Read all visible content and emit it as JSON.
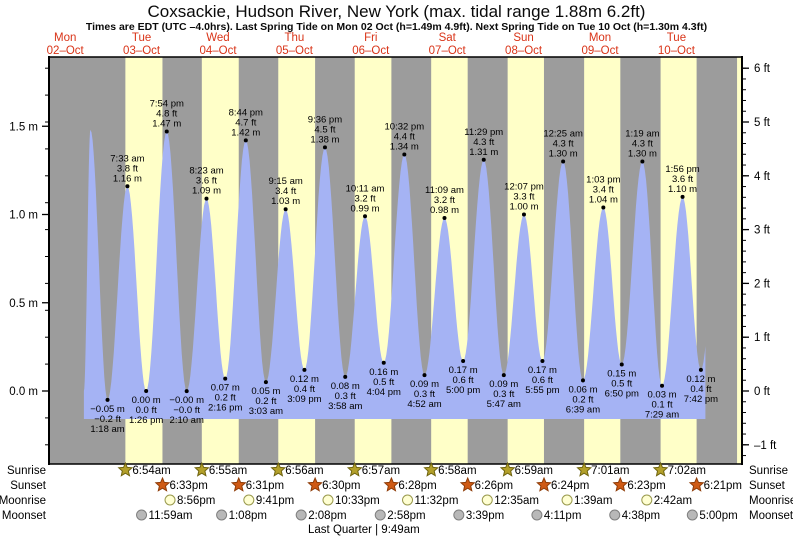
{
  "header": {
    "title": "Coxsackie, Hudson River, New York (max. tidal range 1.88m 6.2ft)",
    "subtitle": "Times are EDT (UTC –4.0hrs). Last Spring Tide on Mon 02 Oct (h=1.49m 4.9ft). Next Spring Tide on Tue 10 Oct (h=1.30m 4.3ft)"
  },
  "days": [
    {
      "dow": "Mon",
      "date": "02–Oct"
    },
    {
      "dow": "Tue",
      "date": "03–Oct"
    },
    {
      "dow": "Wed",
      "date": "04–Oct"
    },
    {
      "dow": "Thu",
      "date": "05–Oct"
    },
    {
      "dow": "Fri",
      "date": "06–Oct"
    },
    {
      "dow": "Sat",
      "date": "07–Oct"
    },
    {
      "dow": "Sun",
      "date": "08–Oct"
    },
    {
      "dow": "Mon",
      "date": "09–Oct"
    },
    {
      "dow": "Tue",
      "date": "10–Oct"
    }
  ],
  "axes": {
    "left_labels": [
      {
        "text": "1.5 m",
        "m": 1.5
      },
      {
        "text": "1.0 m",
        "m": 1.0
      },
      {
        "text": "0.5 m",
        "m": 0.5
      },
      {
        "text": "0.0 m",
        "m": 0.0
      }
    ],
    "right_labels": [
      {
        "text": "6 ft",
        "ft": 6
      },
      {
        "text": "5 ft",
        "ft": 5
      },
      {
        "text": "4 ft",
        "ft": 4
      },
      {
        "text": "3 ft",
        "ft": 3
      },
      {
        "text": "2 ft",
        "ft": 2
      },
      {
        "text": "1 ft",
        "ft": 1
      },
      {
        "text": "0 ft",
        "ft": 0
      },
      {
        "text": "–1 ft",
        "ft": -1
      }
    ]
  },
  "chart_data": {
    "type": "area",
    "title": "Coxsackie, Hudson River, New York tide curve",
    "ylabel_left": "meters",
    "ylabel_right": "feet",
    "ylim_m": [
      -0.43,
      1.88
    ],
    "x_range": "Mon 02 Oct evening – Tue 10 Oct night",
    "legend_position": "none",
    "grid": false,
    "curve": {
      "start": {
        "t": 0.745,
        "h": 0.0
      },
      "unlabeled_spring_peak": {
        "t": 0.83,
        "h": 1.48
      },
      "end_t": 8.88,
      "next_high": {
        "t": 9.09,
        "h": 1.3
      }
    },
    "extremes": [
      {
        "day": 1,
        "type": "low",
        "time_label": "1:18 am",
        "ft_label": "−0.2 ft",
        "m_label": "−0.05 m",
        "h_m": -0.05
      },
      {
        "day": 1,
        "type": "high",
        "time_label": "7:33 am",
        "ft_label": "3.8 ft",
        "m_label": "1.16 m",
        "h_m": 1.16
      },
      {
        "day": 1,
        "type": "low",
        "time_label": "1:26 pm",
        "ft_label": "0.0 ft",
        "m_label": "0.00 m",
        "h_m": 0.0
      },
      {
        "day": 1,
        "type": "high",
        "time_label": "7:54 pm",
        "ft_label": "4.8 ft",
        "m_label": "1.47 m",
        "h_m": 1.47
      },
      {
        "day": 2,
        "type": "low",
        "time_label": "2:10 am",
        "ft_label": "−0.0 ft",
        "m_label": "−0.00 m",
        "h_m": -0.001
      },
      {
        "day": 2,
        "type": "high",
        "time_label": "8:23 am",
        "ft_label": "3.6 ft",
        "m_label": "1.09 m",
        "h_m": 1.09
      },
      {
        "day": 2,
        "type": "low",
        "time_label": "2:16 pm",
        "ft_label": "0.2 ft",
        "m_label": "0.07 m",
        "h_m": 0.07
      },
      {
        "day": 2,
        "type": "high",
        "time_label": "8:44 pm",
        "ft_label": "4.7 ft",
        "m_label": "1.42 m",
        "h_m": 1.42
      },
      {
        "day": 3,
        "type": "low",
        "time_label": "3:03 am",
        "ft_label": "0.2 ft",
        "m_label": "0.05 m",
        "h_m": 0.05
      },
      {
        "day": 3,
        "type": "high",
        "time_label": "9:15 am",
        "ft_label": "3.4 ft",
        "m_label": "1.03 m",
        "h_m": 1.03
      },
      {
        "day": 3,
        "type": "low",
        "time_label": "3:09 pm",
        "ft_label": "0.4 ft",
        "m_label": "0.12 m",
        "h_m": 0.12
      },
      {
        "day": 3,
        "type": "high",
        "time_label": "9:36 pm",
        "ft_label": "4.5 ft",
        "m_label": "1.38 m",
        "h_m": 1.38
      },
      {
        "day": 4,
        "type": "low",
        "time_label": "3:58 am",
        "ft_label": "0.3 ft",
        "m_label": "0.08 m",
        "h_m": 0.08
      },
      {
        "day": 4,
        "type": "high",
        "time_label": "10:11 am",
        "ft_label": "3.2 ft",
        "m_label": "0.99 m",
        "h_m": 0.99
      },
      {
        "day": 4,
        "type": "low",
        "time_label": "4:04 pm",
        "ft_label": "0.5 ft",
        "m_label": "0.16 m",
        "h_m": 0.16
      },
      {
        "day": 4,
        "type": "high",
        "time_label": "10:32 pm",
        "ft_label": "4.4 ft",
        "m_label": "1.34 m",
        "h_m": 1.34
      },
      {
        "day": 5,
        "type": "low",
        "time_label": "4:52 am",
        "ft_label": "0.3 ft",
        "m_label": "0.09 m",
        "h_m": 0.09
      },
      {
        "day": 5,
        "type": "high",
        "time_label": "11:09 am",
        "ft_label": "3.2 ft",
        "m_label": "0.98 m",
        "h_m": 0.98
      },
      {
        "day": 5,
        "type": "low",
        "time_label": "5:00 pm",
        "ft_label": "0.6 ft",
        "m_label": "0.17 m",
        "h_m": 0.17
      },
      {
        "day": 5,
        "type": "high",
        "time_label": "11:29 pm",
        "ft_label": "4.3 ft",
        "m_label": "1.31 m",
        "h_m": 1.31
      },
      {
        "day": 6,
        "type": "low",
        "time_label": "5:47 am",
        "ft_label": "0.3 ft",
        "m_label": "0.09 m",
        "h_m": 0.09
      },
      {
        "day": 6,
        "type": "high",
        "time_label": "12:07 pm",
        "ft_label": "3.3 ft",
        "m_label": "1.00 m",
        "h_m": 1.0
      },
      {
        "day": 6,
        "type": "low",
        "time_label": "5:55 pm",
        "ft_label": "0.6 ft",
        "m_label": "0.17 m",
        "h_m": 0.17
      },
      {
        "day": 7,
        "type": "high",
        "time_label": "12:25 am",
        "ft_label": "4.3 ft",
        "m_label": "1.30 m",
        "h_m": 1.3
      },
      {
        "day": 7,
        "type": "low",
        "time_label": "6:39 am",
        "ft_label": "0.2 ft",
        "m_label": "0.06 m",
        "h_m": 0.06
      },
      {
        "day": 7,
        "type": "high",
        "time_label": "1:03 pm",
        "ft_label": "3.4 ft",
        "m_label": "1.04 m",
        "h_m": 1.04
      },
      {
        "day": 7,
        "type": "low",
        "time_label": "6:50 pm",
        "ft_label": "0.5 ft",
        "m_label": "0.15 m",
        "h_m": 0.15
      },
      {
        "day": 8,
        "type": "high",
        "time_label": "1:19 am",
        "ft_label": "4.3 ft",
        "m_label": "1.30 m",
        "h_m": 1.3
      },
      {
        "day": 8,
        "type": "low",
        "time_label": "7:29 am",
        "ft_label": "0.1 ft",
        "m_label": "0.03 m",
        "h_m": 0.03
      },
      {
        "day": 8,
        "type": "high",
        "time_label": "1:56 pm",
        "ft_label": "3.6 ft",
        "m_label": "1.10 m",
        "h_m": 1.1
      },
      {
        "day": 8,
        "type": "low",
        "time_label": "7:42 pm",
        "ft_label": "0.4 ft",
        "m_label": "0.12 m",
        "h_m": 0.12
      }
    ]
  },
  "astro": {
    "rows": [
      {
        "name": "Sunrise",
        "icon": "sunrise-star",
        "events": [
          {
            "day": 1,
            "time": "6:54am"
          },
          {
            "day": 2,
            "time": "6:55am"
          },
          {
            "day": 3,
            "time": "6:56am"
          },
          {
            "day": 4,
            "time": "6:57am"
          },
          {
            "day": 5,
            "time": "6:58am"
          },
          {
            "day": 6,
            "time": "6:59am"
          },
          {
            "day": 7,
            "time": "7:01am"
          },
          {
            "day": 8,
            "time": "7:02am"
          }
        ]
      },
      {
        "name": "Sunset",
        "icon": "sunset-star",
        "events": [
          {
            "day": 1,
            "time": "6:33pm"
          },
          {
            "day": 2,
            "time": "6:31pm"
          },
          {
            "day": 3,
            "time": "6:30pm"
          },
          {
            "day": 4,
            "time": "6:28pm"
          },
          {
            "day": 5,
            "time": "6:26pm"
          },
          {
            "day": 6,
            "time": "6:24pm"
          },
          {
            "day": 7,
            "time": "6:23pm"
          },
          {
            "day": 8,
            "time": "6:21pm"
          }
        ]
      },
      {
        "name": "Moonrise",
        "icon": "moonrise-circle",
        "events": [
          {
            "day": 1,
            "time": "8:56pm"
          },
          {
            "day": 2,
            "time": "9:41pm"
          },
          {
            "day": 3,
            "time": "10:33pm"
          },
          {
            "day": 4,
            "time": "11:32pm"
          },
          {
            "day": 6,
            "time": "12:35am"
          },
          {
            "day": 7,
            "time": "1:39am"
          },
          {
            "day": 8,
            "time": "2:42am"
          }
        ]
      },
      {
        "name": "Moonset",
        "icon": "moonset-circle",
        "events": [
          {
            "day": 1,
            "time": "11:59am"
          },
          {
            "day": 2,
            "time": "1:08pm"
          },
          {
            "day": 3,
            "time": "2:08pm"
          },
          {
            "day": 4,
            "time": "2:58pm"
          },
          {
            "day": 5,
            "time": "3:39pm"
          },
          {
            "day": 6,
            "time": "4:11pm"
          },
          {
            "day": 7,
            "time": "4:38pm"
          },
          {
            "day": 8,
            "time": "5:00pm"
          }
        ]
      }
    ],
    "moon_phase": {
      "display": "Last Quarter | 9:49am",
      "label": "Last Quarter",
      "time": "9:49am",
      "day": 4
    }
  },
  "colors": {
    "night_band": "#9c9c9c",
    "day_band": "#ffffc8",
    "tide_fill": "#a5b3f4",
    "day_label": "#d93418",
    "axis": "#000000",
    "text": "#000000",
    "sunrise_star": "#b3a02a",
    "sunrise_star_stroke": "#6f6410",
    "sunset_star": "#cf5a14",
    "sunset_star_stroke": "#8e3c08",
    "moonrise_fill": "#ffffd2",
    "moonrise_stroke": "#99994d",
    "moonset_fill": "#b8b8b8",
    "moonset_stroke": "#7f7f7f"
  }
}
